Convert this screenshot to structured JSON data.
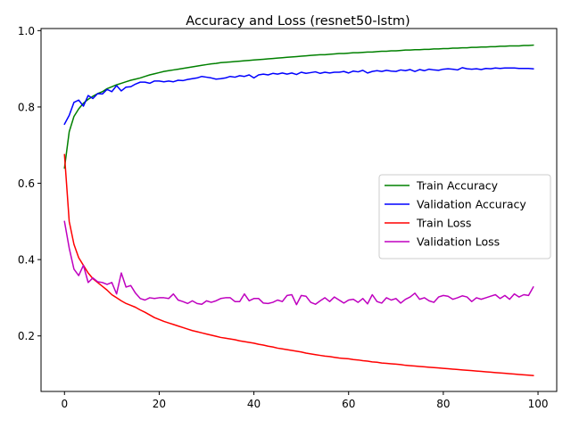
{
  "chart_data": {
    "type": "line",
    "title": "Accuracy and Loss (resnet50-lstm)",
    "xlabel": "",
    "ylabel": "",
    "xlim": [
      -4.95,
      103.95
    ],
    "ylim": [
      0.0545,
      1.0055
    ],
    "xticks": [
      0,
      20,
      40,
      60,
      80,
      100
    ],
    "yticks": [
      0.2,
      0.4,
      0.6,
      0.8,
      1.0
    ],
    "xtick_labels": [
      "0",
      "20",
      "40",
      "60",
      "80",
      "100"
    ],
    "ytick_labels": [
      "0.2",
      "0.4",
      "0.6",
      "0.8",
      "1.0"
    ],
    "grid": false,
    "legend_position": "center-right",
    "series": [
      {
        "name": "Train Accuracy",
        "color": "#008000",
        "values": [
          0.64,
          0.735,
          0.775,
          0.795,
          0.81,
          0.82,
          0.828,
          0.835,
          0.84,
          0.848,
          0.853,
          0.858,
          0.862,
          0.866,
          0.87,
          0.873,
          0.876,
          0.88,
          0.884,
          0.887,
          0.89,
          0.893,
          0.895,
          0.897,
          0.899,
          0.901,
          0.903,
          0.905,
          0.907,
          0.909,
          0.911,
          0.913,
          0.914,
          0.916,
          0.917,
          0.918,
          0.919,
          0.92,
          0.921,
          0.922,
          0.923,
          0.924,
          0.925,
          0.926,
          0.927,
          0.928,
          0.929,
          0.93,
          0.931,
          0.932,
          0.933,
          0.934,
          0.935,
          0.936,
          0.937,
          0.937,
          0.938,
          0.939,
          0.94,
          0.94,
          0.941,
          0.942,
          0.942,
          0.943,
          0.944,
          0.944,
          0.945,
          0.946,
          0.946,
          0.947,
          0.947,
          0.948,
          0.949,
          0.949,
          0.95,
          0.95,
          0.951,
          0.951,
          0.952,
          0.952,
          0.953,
          0.953,
          0.954,
          0.954,
          0.955,
          0.955,
          0.956,
          0.956,
          0.957,
          0.957,
          0.958,
          0.958,
          0.959,
          0.959,
          0.96,
          0.96,
          0.96,
          0.961,
          0.961,
          0.962
        ]
      },
      {
        "name": "Validation Accuracy",
        "color": "#0000ff",
        "values": [
          0.755,
          0.778,
          0.812,
          0.818,
          0.802,
          0.83,
          0.822,
          0.835,
          0.834,
          0.846,
          0.84,
          0.856,
          0.842,
          0.852,
          0.853,
          0.86,
          0.865,
          0.865,
          0.862,
          0.868,
          0.868,
          0.866,
          0.868,
          0.866,
          0.87,
          0.869,
          0.872,
          0.874,
          0.876,
          0.88,
          0.878,
          0.876,
          0.873,
          0.874,
          0.876,
          0.88,
          0.878,
          0.882,
          0.88,
          0.884,
          0.876,
          0.884,
          0.886,
          0.884,
          0.888,
          0.886,
          0.889,
          0.886,
          0.889,
          0.885,
          0.891,
          0.888,
          0.89,
          0.892,
          0.888,
          0.891,
          0.889,
          0.891,
          0.891,
          0.893,
          0.889,
          0.894,
          0.892,
          0.896,
          0.889,
          0.893,
          0.895,
          0.893,
          0.896,
          0.894,
          0.893,
          0.897,
          0.895,
          0.898,
          0.893,
          0.898,
          0.895,
          0.899,
          0.897,
          0.896,
          0.899,
          0.9,
          0.899,
          0.897,
          0.903,
          0.9,
          0.899,
          0.9,
          0.898,
          0.901,
          0.9,
          0.902,
          0.901,
          0.902,
          0.902,
          0.902,
          0.901,
          0.901,
          0.901,
          0.9
        ]
      },
      {
        "name": "Train Loss",
        "color": "#ff0000",
        "values": [
          0.675,
          0.5,
          0.44,
          0.405,
          0.385,
          0.365,
          0.35,
          0.34,
          0.33,
          0.32,
          0.308,
          0.3,
          0.292,
          0.285,
          0.28,
          0.275,
          0.268,
          0.262,
          0.255,
          0.248,
          0.243,
          0.238,
          0.234,
          0.23,
          0.226,
          0.222,
          0.218,
          0.214,
          0.211,
          0.208,
          0.205,
          0.202,
          0.199,
          0.196,
          0.194,
          0.192,
          0.19,
          0.187,
          0.185,
          0.183,
          0.181,
          0.178,
          0.176,
          0.173,
          0.171,
          0.168,
          0.166,
          0.164,
          0.162,
          0.16,
          0.158,
          0.155,
          0.153,
          0.151,
          0.149,
          0.147,
          0.146,
          0.144,
          0.142,
          0.141,
          0.14,
          0.138,
          0.137,
          0.135,
          0.134,
          0.132,
          0.131,
          0.129,
          0.128,
          0.127,
          0.126,
          0.125,
          0.123,
          0.122,
          0.121,
          0.12,
          0.119,
          0.118,
          0.117,
          0.116,
          0.115,
          0.114,
          0.113,
          0.112,
          0.111,
          0.11,
          0.109,
          0.108,
          0.107,
          0.106,
          0.105,
          0.104,
          0.103,
          0.102,
          0.101,
          0.1,
          0.099,
          0.098,
          0.097,
          0.096
        ]
      },
      {
        "name": "Validation Loss",
        "color": "#bf00bf",
        "values": [
          0.5,
          0.43,
          0.375,
          0.358,
          0.385,
          0.34,
          0.352,
          0.342,
          0.34,
          0.335,
          0.34,
          0.31,
          0.365,
          0.328,
          0.332,
          0.312,
          0.298,
          0.294,
          0.3,
          0.298,
          0.3,
          0.3,
          0.298,
          0.31,
          0.294,
          0.29,
          0.285,
          0.292,
          0.285,
          0.283,
          0.292,
          0.288,
          0.292,
          0.298,
          0.3,
          0.3,
          0.29,
          0.29,
          0.31,
          0.292,
          0.298,
          0.298,
          0.286,
          0.285,
          0.288,
          0.294,
          0.29,
          0.306,
          0.308,
          0.282,
          0.306,
          0.304,
          0.288,
          0.283,
          0.292,
          0.3,
          0.29,
          0.302,
          0.294,
          0.286,
          0.294,
          0.296,
          0.288,
          0.298,
          0.284,
          0.308,
          0.29,
          0.286,
          0.3,
          0.294,
          0.298,
          0.286,
          0.296,
          0.302,
          0.312,
          0.296,
          0.3,
          0.292,
          0.288,
          0.302,
          0.306,
          0.304,
          0.296,
          0.3,
          0.305,
          0.302,
          0.29,
          0.3,
          0.296,
          0.3,
          0.304,
          0.308,
          0.298,
          0.306,
          0.296,
          0.31,
          0.302,
          0.308,
          0.306,
          0.328
        ]
      }
    ]
  }
}
